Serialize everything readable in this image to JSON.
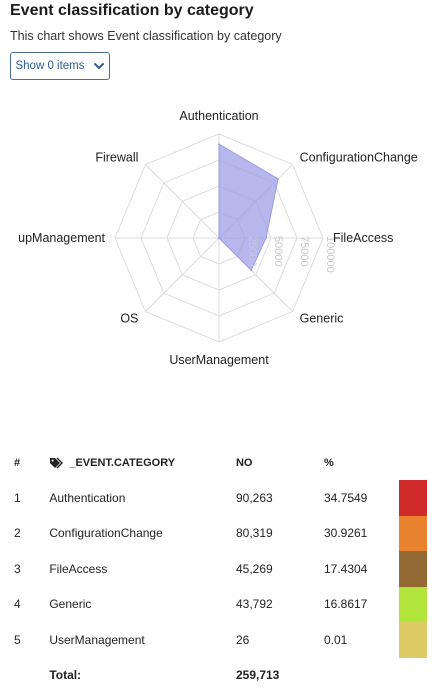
{
  "title": "Event classification by category",
  "subtitle": "This chart shows Event classification by category",
  "show_button": {
    "label": "Show 0 items",
    "icon": "chevron-down-icon"
  },
  "chart_data": {
    "type": "radar",
    "title": "Event classification by category",
    "categories": [
      "Authentication",
      "ConfigurationChange",
      "FileAccess",
      "Generic",
      "UserManagement",
      "OS",
      "ddGroupManagement",
      "Firewall"
    ],
    "displayed_category_labels": [
      "Authentication",
      "ConfigurationChange",
      "FileAccess",
      "Generic",
      "UserManagement",
      "OS",
      "upManagement",
      "Firewall"
    ],
    "series": [
      {
        "values": [
          90263,
          80319,
          45269,
          43792,
          26,
          0,
          0,
          0
        ],
        "color": "#9b9be6"
      }
    ],
    "radial_ticks": [
      "25000",
      "50000",
      "75000",
      "100000"
    ],
    "rlim": [
      0,
      100000
    ],
    "grid": true
  },
  "table": {
    "headers": {
      "index": "#",
      "category": "_EVENT.CATEGORY",
      "no": "NO",
      "pct": "%"
    },
    "category_icon": "tag-icon",
    "rows": [
      {
        "index": "1",
        "category": "Authentication",
        "no": "90,263",
        "pct": "34.7549",
        "color": "#d12a2a"
      },
      {
        "index": "2",
        "category": "ConfigurationChange",
        "no": "80,319",
        "pct": "30.9261",
        "color": "#e8822f"
      },
      {
        "index": "3",
        "category": "FileAccess",
        "no": "45,269",
        "pct": "17.4304",
        "color": "#946a34"
      },
      {
        "index": "4",
        "category": "Generic",
        "no": "43,792",
        "pct": "16.8617",
        "color": "#b1e53b"
      },
      {
        "index": "5",
        "category": "UserManagement",
        "no": "26",
        "pct": "0.01",
        "color": "#ddcc66"
      }
    ],
    "total_label": "Total:",
    "total_value": "259,713"
  }
}
